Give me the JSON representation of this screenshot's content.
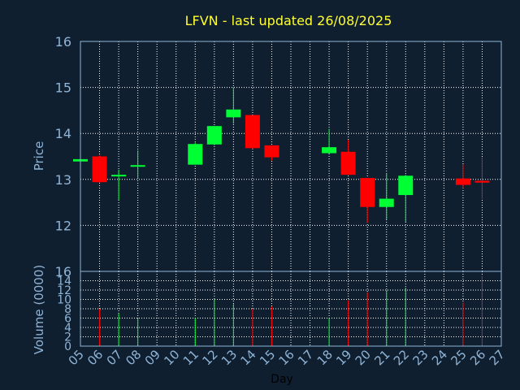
{
  "chart_data": {
    "type": "candlestick",
    "title": "LFVN - last updated 26/08/2025",
    "xlabel": "Day",
    "price_panel": {
      "ylabel": "Price",
      "ylim": [
        11,
        16
      ],
      "yticks": [
        "12",
        "13",
        "14",
        "15",
        "16"
      ],
      "grid": true
    },
    "volume_panel": {
      "ylabel": "Volume (0000)",
      "ylim": [
        0,
        16
      ],
      "yticks": [
        "0",
        "2",
        "4",
        "6",
        "8",
        "10",
        "12",
        "14",
        "16"
      ],
      "grid": true
    },
    "x_ticks": [
      "05",
      "06",
      "07",
      "08",
      "09",
      "10",
      "11",
      "12",
      "13",
      "14",
      "15",
      "16",
      "17",
      "18",
      "19",
      "20",
      "21",
      "22",
      "23",
      "24",
      "25",
      "26",
      "27"
    ],
    "colors": {
      "up": "#00ff33",
      "down": "#ff0000",
      "grid": "#ffffff",
      "axis": "#8fb4d6",
      "background": "#0f1f30",
      "title": "#ffff33"
    },
    "candles": [
      {
        "day": 5,
        "open": 13.39,
        "high": 13.44,
        "low": 13.39,
        "close": 13.44,
        "volume": 0.0
      },
      {
        "day": 6,
        "open": 13.5,
        "high": 13.52,
        "low": 12.93,
        "close": 12.94,
        "volume": 8.0
      },
      {
        "day": 7,
        "open": 13.07,
        "high": 13.21,
        "low": 12.55,
        "close": 13.1,
        "volume": 7.0
      },
      {
        "day": 8,
        "open": 13.29,
        "high": 13.63,
        "low": 13.02,
        "close": 13.31,
        "volume": 6.0
      },
      {
        "day": 11,
        "open": 13.32,
        "high": 13.8,
        "low": 13.32,
        "close": 13.77,
        "volume": 6.0
      },
      {
        "day": 12,
        "open": 13.76,
        "high": 14.16,
        "low": 13.74,
        "close": 14.16,
        "volume": 10.0
      },
      {
        "day": 13,
        "open": 14.35,
        "high": 15.0,
        "low": 14.21,
        "close": 14.52,
        "volume": 9.0
      },
      {
        "day": 14,
        "open": 14.4,
        "high": 14.4,
        "low": 13.66,
        "close": 13.68,
        "volume": 8.0
      },
      {
        "day": 15,
        "open": 13.74,
        "high": 13.74,
        "low": 13.41,
        "close": 13.48,
        "volume": 8.5
      },
      {
        "day": 18,
        "open": 13.57,
        "high": 14.1,
        "low": 13.56,
        "close": 13.7,
        "volume": 6.0
      },
      {
        "day": 19,
        "open": 13.6,
        "high": 13.86,
        "low": 13.1,
        "close": 13.1,
        "volume": 9.8
      },
      {
        "day": 20,
        "open": 13.03,
        "high": 13.03,
        "low": 12.06,
        "close": 12.4,
        "volume": 11.5
      },
      {
        "day": 21,
        "open": 12.4,
        "high": 13.14,
        "low": 12.13,
        "close": 12.58,
        "volume": 12.0
      },
      {
        "day": 22,
        "open": 12.66,
        "high": 13.1,
        "low": 12.08,
        "close": 13.08,
        "volume": 12.5
      },
      {
        "day": 25,
        "open": 13.02,
        "high": 13.33,
        "low": 12.81,
        "close": 12.88,
        "volume": 9.3
      },
      {
        "day": 26,
        "open": 12.97,
        "high": 13.48,
        "low": 12.58,
        "close": 12.93,
        "volume": 15.0
      }
    ]
  }
}
